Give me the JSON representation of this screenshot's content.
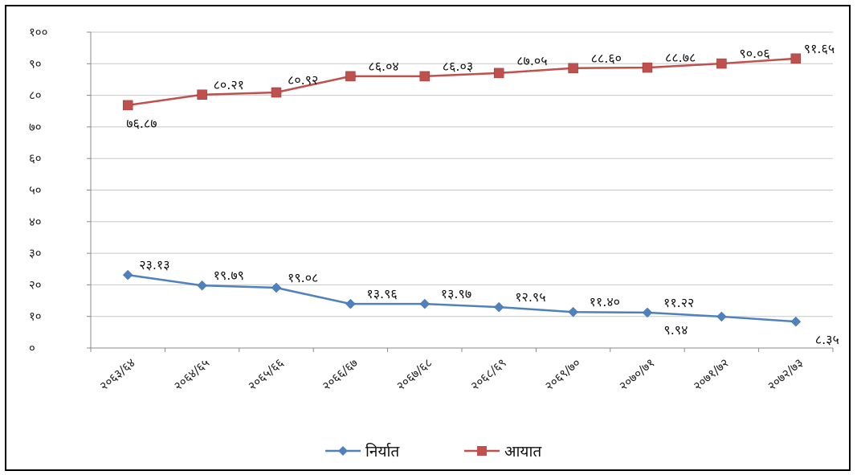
{
  "chart_data": {
    "type": "line",
    "title": "",
    "xlabel": "",
    "ylabel": "",
    "ylim": [
      0,
      100
    ],
    "yticks": [
      0,
      10,
      20,
      30,
      40,
      50,
      60,
      70,
      80,
      90,
      100
    ],
    "ytick_labels": [
      "०",
      "१०",
      "२०",
      "३०",
      "४०",
      "५०",
      "६०",
      "७०",
      "८०",
      "९०",
      "१००"
    ],
    "grid": "horizontal",
    "legend": "bottom",
    "categories": [
      "२०६३/६४",
      "२०६४/६५",
      "२०६५/६६",
      "२०६६/६७",
      "२०६७/६८",
      "२०६८/६९",
      "२०६९/७०",
      "२०७०/७१",
      "२०७१/७२",
      "२०७२/७३"
    ],
    "series": [
      {
        "name": "निर्यात",
        "color": "#4f81bd",
        "marker": "diamond",
        "values": [
          23.13,
          19.79,
          19.08,
          13.96,
          13.97,
          12.95,
          11.4,
          11.22,
          9.94,
          8.35
        ],
        "labels": [
          "२३.१३",
          "१९.७९",
          "१९.०८",
          "१३.९६",
          "१३.९७",
          "१२.९५",
          "११.४०",
          "११.२२",
          "९.९४",
          "८.३५"
        ]
      },
      {
        "name": "आयात",
        "color": "#c0504d",
        "marker": "square",
        "values": [
          76.87,
          80.21,
          80.92,
          86.04,
          86.03,
          87.05,
          88.6,
          88.78,
          90.06,
          91.65
        ],
        "labels": [
          "७६.८७",
          "८०.२१",
          "८०.९२",
          "८६.०४",
          "८६.०३",
          "८७.०५",
          "८८.६०",
          "८८.७८",
          "९०.०६",
          "९१.६५"
        ]
      }
    ]
  }
}
